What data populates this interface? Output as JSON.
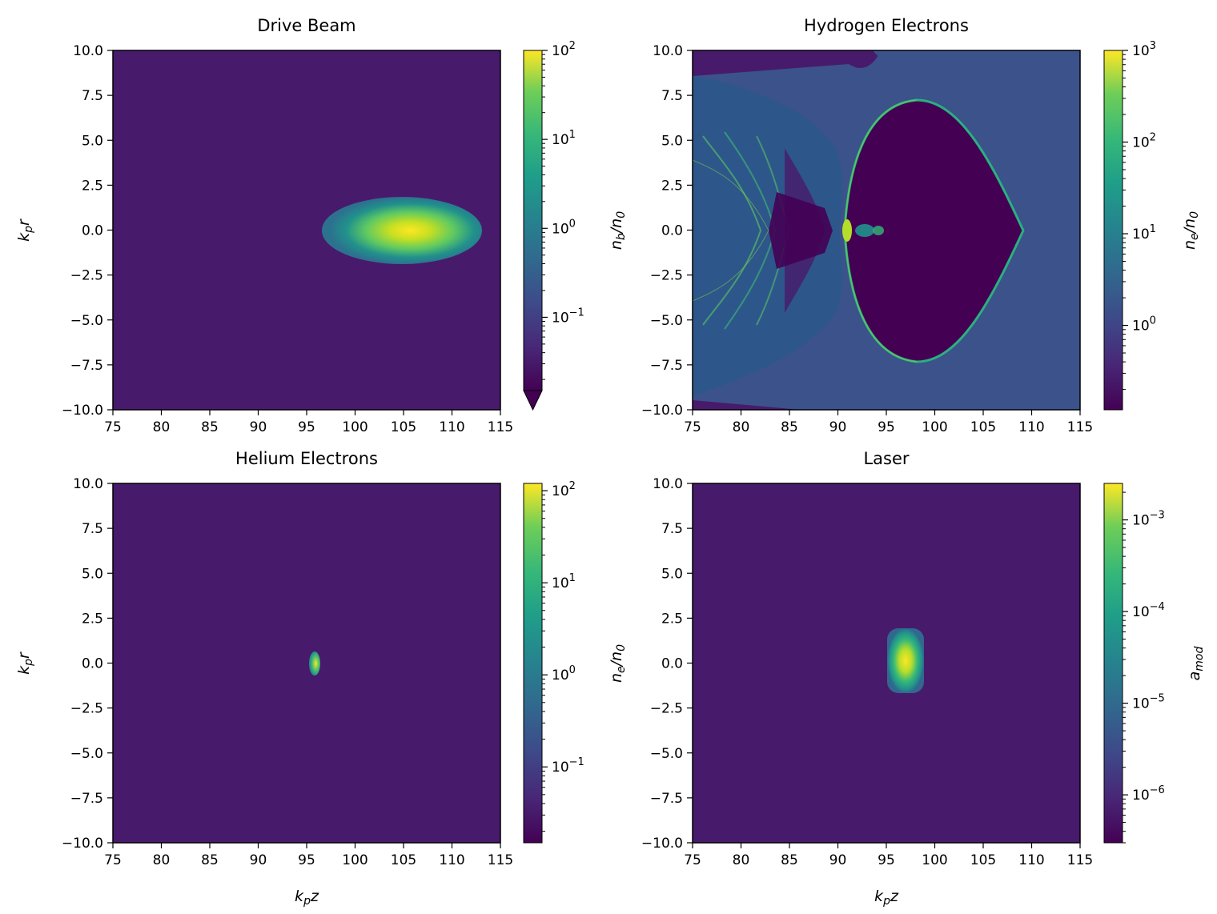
{
  "chart_data": [
    {
      "type": "heatmap",
      "title": "Drive Beam",
      "xlabel": "",
      "ylabel": "k_p r",
      "xlim": [
        75,
        115
      ],
      "ylim": [
        -10,
        10
      ],
      "x_ticks": [
        "75",
        "80",
        "85",
        "90",
        "95",
        "100",
        "105",
        "110",
        "115"
      ],
      "y_ticks": [
        "10.0",
        "7.5",
        "5.0",
        "2.5",
        "0.0",
        "−2.5",
        "−5.0",
        "−7.5",
        "−10.0"
      ],
      "colorbar": {
        "label": "n_b/n_0",
        "scale": "log",
        "range": [
          0.015,
          100
        ],
        "ticks": [
          "10^-1",
          "10^0",
          "10^1",
          "10^2"
        ],
        "extend_min": true
      },
      "features": [
        {
          "shape": "ellipse",
          "z_center": 105,
          "r_center": 0,
          "z_extent": [
            97,
            113
          ],
          "r_extent": [
            -3.2,
            3.2
          ],
          "peak": 100
        }
      ]
    },
    {
      "type": "heatmap",
      "title": "Hydrogen Electrons",
      "xlabel": "",
      "ylabel": "n_b/n_0",
      "xlim": [
        75,
        115
      ],
      "ylim": [
        -10,
        10
      ],
      "x_ticks": [
        "75",
        "80",
        "85",
        "90",
        "95",
        "100",
        "105",
        "110",
        "115"
      ],
      "y_ticks": [
        "10.0",
        "7.5",
        "5.0",
        "2.5",
        "0.0",
        "−2.5",
        "−5.0",
        "−7.5",
        "−10.0"
      ],
      "colorbar": {
        "label": "n_e/n_0",
        "scale": "log",
        "range": [
          0.12,
          1000
        ],
        "ticks": [
          "10^0",
          "10^1",
          "10^2",
          "10^3"
        ]
      },
      "features": [
        {
          "shape": "bubble",
          "z_extent": [
            91,
            110
          ],
          "r_extent": [
            -7.3,
            7.3
          ],
          "background": 1
        }
      ]
    },
    {
      "type": "heatmap",
      "title": "Helium Electrons",
      "xlabel": "k_p z",
      "ylabel": "k_p r",
      "xlim": [
        75,
        115
      ],
      "ylim": [
        -10,
        10
      ],
      "x_ticks": [
        "75",
        "80",
        "85",
        "90",
        "95",
        "100",
        "105",
        "110",
        "115"
      ],
      "y_ticks": [
        "10.0",
        "7.5",
        "5.0",
        "2.5",
        "0.0",
        "−2.5",
        "−5.0",
        "−7.5",
        "−10.0"
      ],
      "colorbar": {
        "label": "",
        "scale": "log",
        "range": [
          0.015,
          120
        ],
        "ticks": [
          "10^-1",
          "10^0",
          "10^1",
          "10^2"
        ]
      },
      "features": [
        {
          "shape": "spot",
          "z_center": 95.8,
          "r_center": 0,
          "z_extent": [
            95.4,
            96.2
          ],
          "r_extent": [
            -0.7,
            0.7
          ],
          "peak": 100
        }
      ]
    },
    {
      "type": "heatmap",
      "title": "Laser",
      "xlabel": "k_p z",
      "ylabel": "n_e/n_0",
      "xlim": [
        75,
        115
      ],
      "ylim": [
        -10,
        10
      ],
      "x_ticks": [
        "75",
        "80",
        "85",
        "90",
        "95",
        "100",
        "105",
        "110",
        "115"
      ],
      "y_ticks": [
        "10.0",
        "7.5",
        "5.0",
        "2.5",
        "0.0",
        "−2.5",
        "−5.0",
        "−7.5",
        "−10.0"
      ],
      "colorbar": {
        "label": "a_mod",
        "scale": "log",
        "range": [
          3e-07,
          0.0025
        ],
        "ticks": [
          "10^-6",
          "10^-5",
          "10^-4",
          "10^-3"
        ]
      },
      "features": [
        {
          "shape": "rounded-rect",
          "z_center": 97,
          "r_center": 0,
          "z_extent": [
            95.2,
            98.8
          ],
          "r_extent": [
            -1.8,
            1.8
          ],
          "peak": 0.0025
        }
      ]
    }
  ]
}
